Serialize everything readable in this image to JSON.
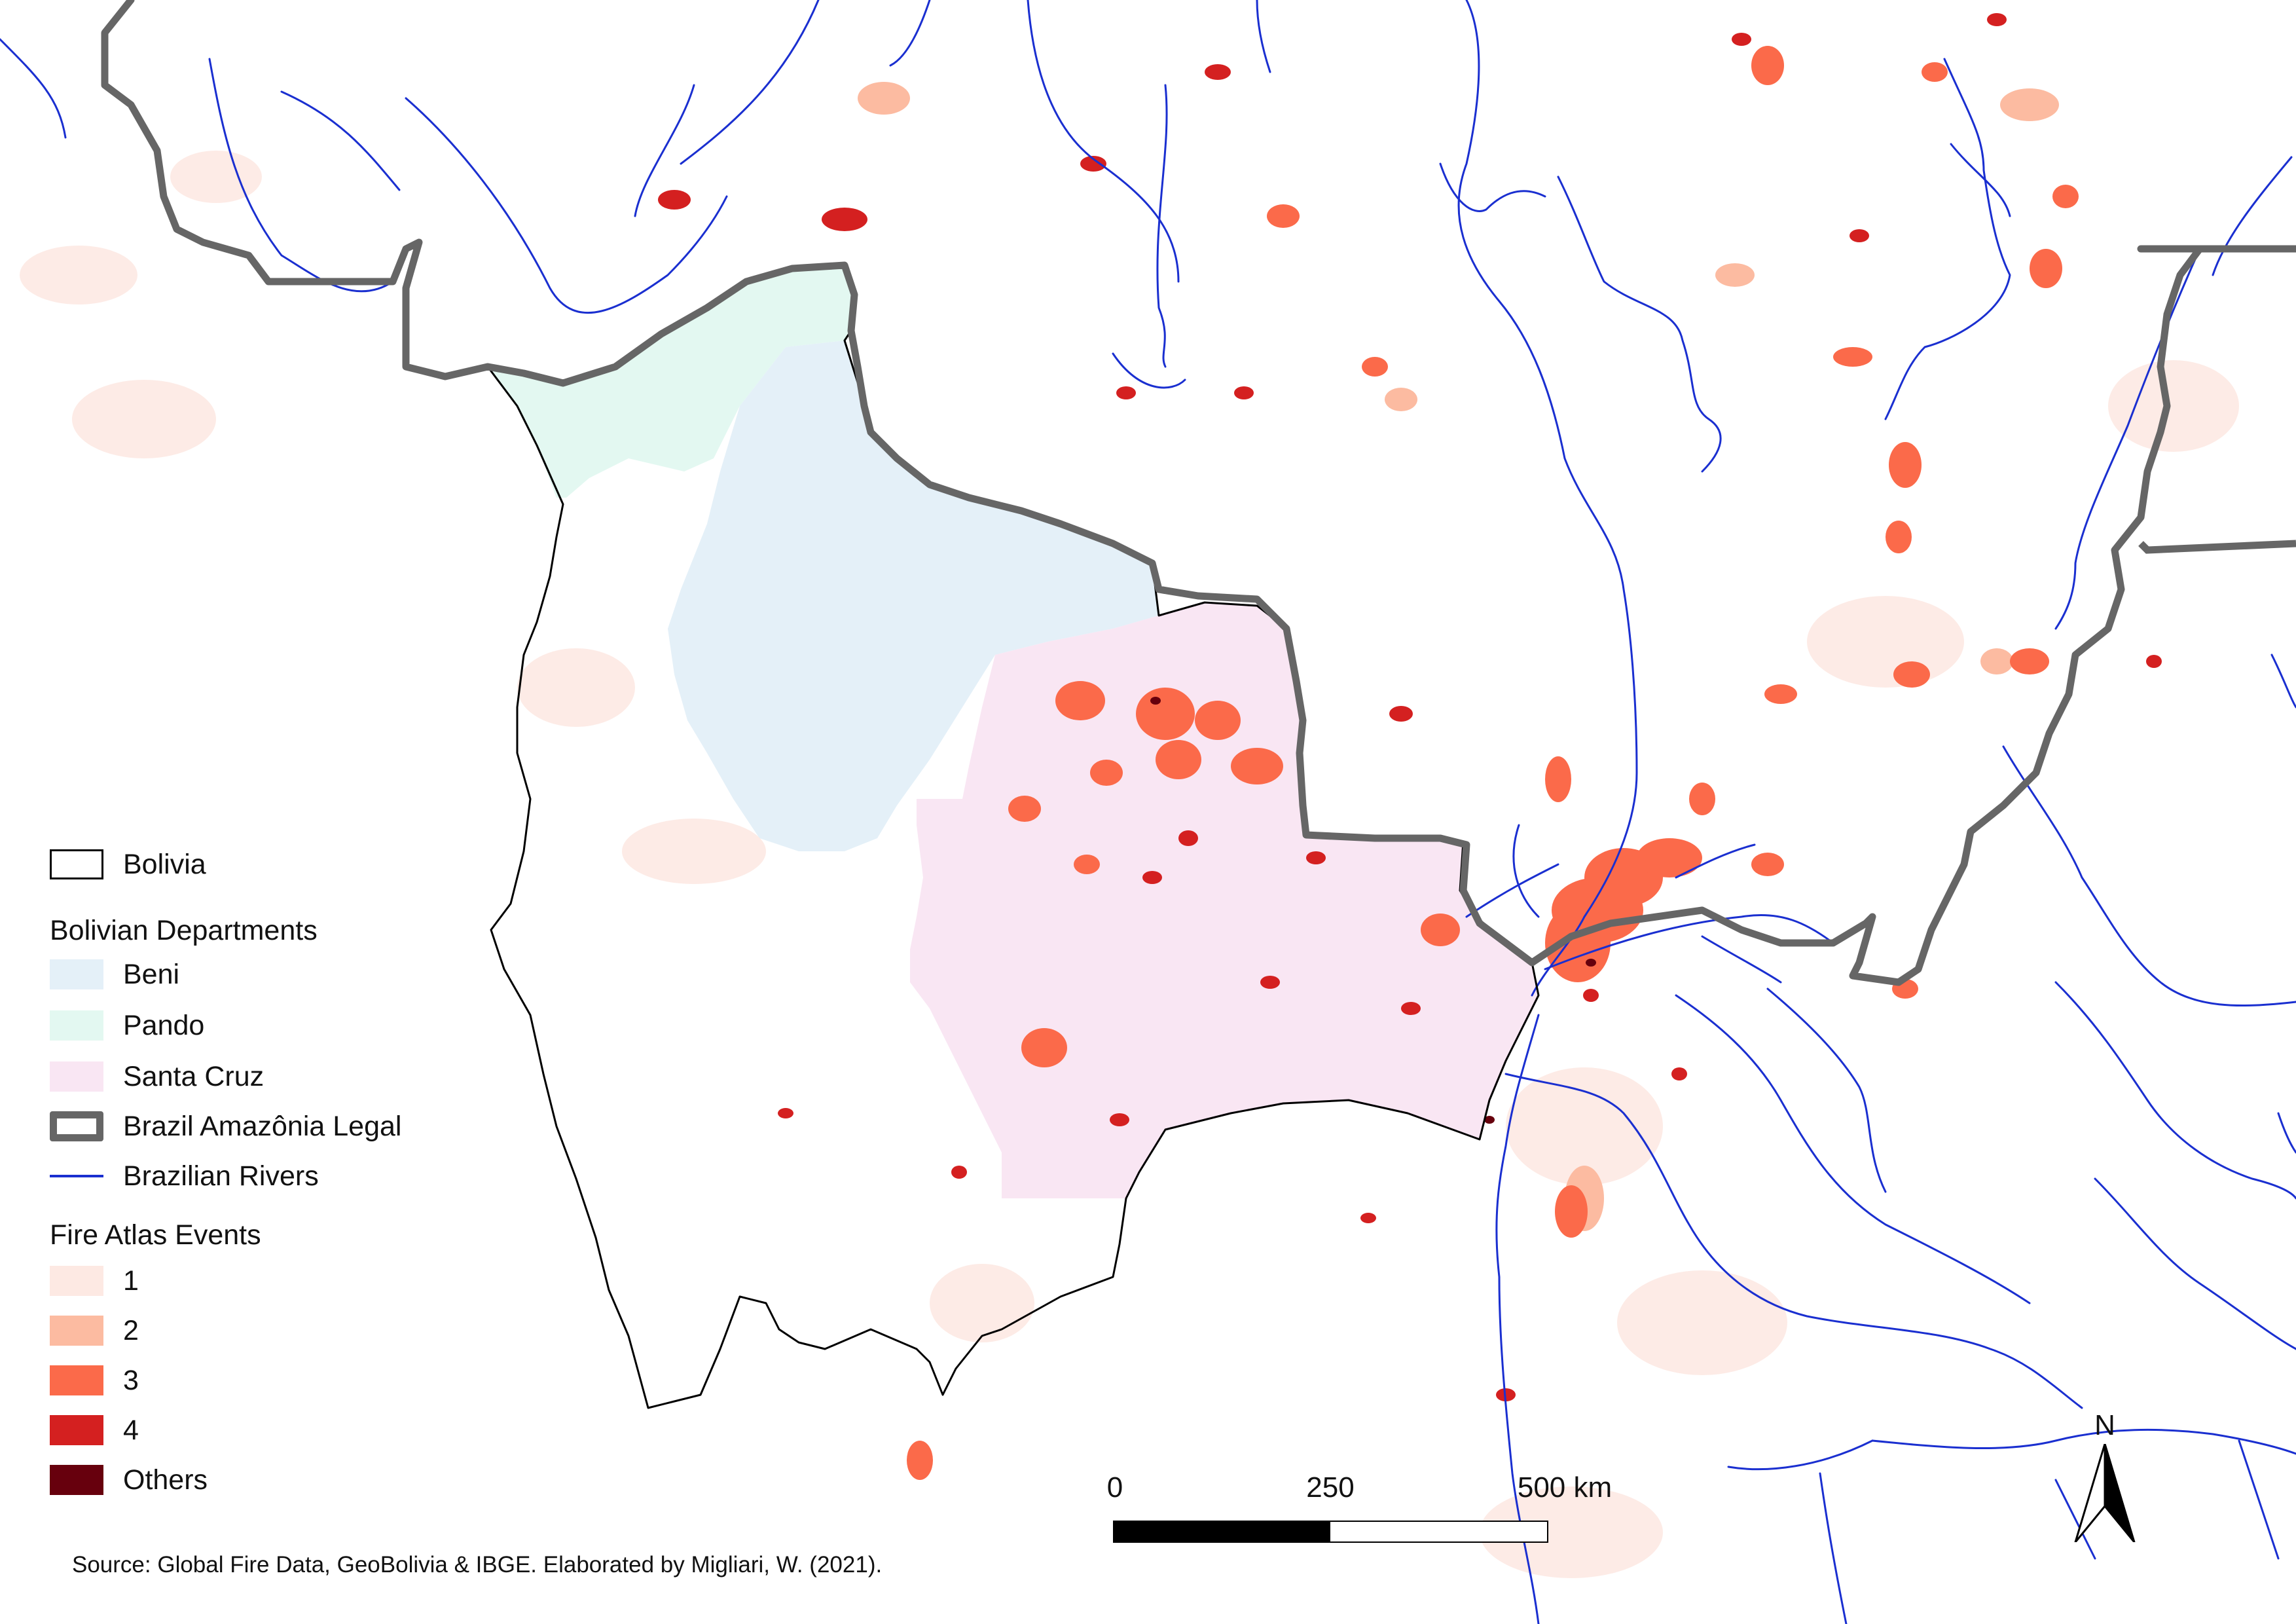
{
  "colors": {
    "bolivia_outline": "#000000",
    "beni": "#e4f0f8",
    "pando": "#e3f8f1",
    "santa_cruz": "#f9e6f3",
    "amazonia_legal": "#666666",
    "rivers": "#1a2fd0",
    "fire_1": "#fde9e3",
    "fire_2": "#fcbba1",
    "fire_3": "#fb6a4a",
    "fire_4": "#d42020",
    "fire_others": "#67000d"
  },
  "legend": {
    "bolivia": "Bolivia",
    "departments_heading": "Bolivian Departments",
    "beni": "Beni",
    "pando": "Pando",
    "santa_cruz": "Santa Cruz",
    "amazonia_legal": "Brazil Amazônia Legal",
    "rivers": "Brazilian Rivers",
    "fire_heading": "Fire Atlas Events",
    "fire_1": "1",
    "fire_2": "2",
    "fire_3": "3",
    "fire_4": "4",
    "fire_others": "Others"
  },
  "scalebar": {
    "tick_0": "0",
    "tick_250": "250",
    "tick_500": "500 km"
  },
  "north_arrow": {
    "letter": "N",
    "icon": "north-arrow-icon"
  },
  "source": "Source: Global Fire Data, GeoBolivia & IBGE. Elaborated by Migliari, W. (2021)."
}
